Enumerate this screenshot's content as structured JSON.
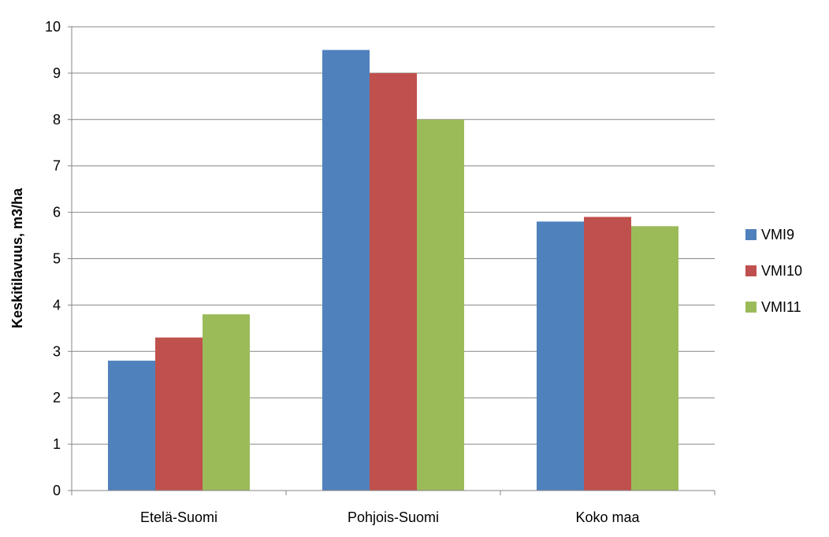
{
  "chart_data": {
    "type": "bar",
    "title": "",
    "xlabel": "",
    "ylabel": "Keskitilavuus, m3/ha",
    "ylim": [
      0,
      10
    ],
    "yticks": [
      "0",
      "1",
      "2",
      "3",
      "4",
      "5",
      "6",
      "7",
      "8",
      "9",
      "10"
    ],
    "categories": [
      "Etelä-Suomi",
      "Pohjois-Suomi",
      "Koko maa"
    ],
    "series": [
      {
        "name": "VMI9",
        "color": "#4f81bd",
        "values": [
          2.8,
          9.5,
          5.8
        ]
      },
      {
        "name": "VMI10",
        "color": "#c0504d",
        "values": [
          3.3,
          9.0,
          5.9
        ]
      },
      {
        "name": "VMI11",
        "color": "#9bbb59",
        "values": [
          3.8,
          8.0,
          5.7
        ]
      }
    ],
    "grid": true,
    "legend_position": "right"
  }
}
